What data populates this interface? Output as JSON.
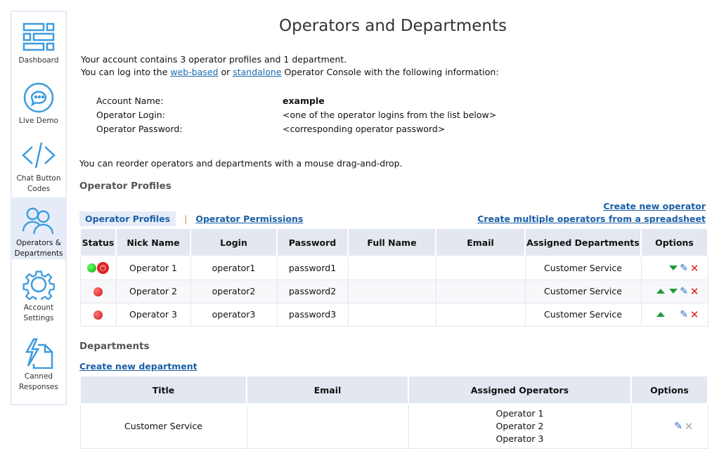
{
  "sidebar": {
    "items": [
      {
        "label": "Dashboard",
        "icon": "dashboard-icon"
      },
      {
        "label": "Live Demo",
        "icon": "chat-bubble-icon"
      },
      {
        "label": "Chat Button Codes",
        "icon": "code-icon"
      },
      {
        "label": "Operators & Departments",
        "icon": "users-icon",
        "active": true
      },
      {
        "label": "Account Settings",
        "icon": "gear-icon"
      },
      {
        "label": "Canned Responses",
        "icon": "lightning-document-icon"
      }
    ]
  },
  "page": {
    "title": "Operators and Departments",
    "intro1": "Your account contains 3 operator profiles and 1 department.",
    "intro2a": "You can log into the ",
    "link_web": "web-based",
    "intro2b": " or ",
    "link_standalone": "standalone",
    "intro2c": " Operator Console with the following information:",
    "info": [
      {
        "label": "Account Name:",
        "value": "example"
      },
      {
        "label": "Operator Login:",
        "value": "<one of the operator logins from the list below>"
      },
      {
        "label": "Operator Password:",
        "value": "<corresponding operator password>"
      }
    ],
    "reorder": "You can reorder operators and departments with a mouse drag-and-drop."
  },
  "operators": {
    "heading": "Operator Profiles",
    "create": "Create new operator",
    "create_multi": "Create multiple operators from a spreadsheet",
    "tabs": [
      {
        "label": "Operator Profiles",
        "active": true
      },
      {
        "label": "Operator Permissions"
      }
    ],
    "separator": "|",
    "columns": [
      "Status",
      "Nick Name",
      "Login",
      "Password",
      "Full Name",
      "Email",
      "Assigned Departments",
      "Options"
    ],
    "rows": [
      {
        "status": "online",
        "nick": "Operator 1",
        "login": "operator1",
        "password": "password1",
        "full_name": "",
        "email": "",
        "departments": "Customer Service"
      },
      {
        "status": "offline",
        "nick": "Operator 2",
        "login": "operator2",
        "password": "password2",
        "full_name": "",
        "email": "",
        "departments": "Customer Service"
      },
      {
        "status": "offline",
        "nick": "Operator 3",
        "login": "operator3",
        "password": "password3",
        "full_name": "",
        "email": "",
        "departments": "Customer Service"
      }
    ]
  },
  "departments": {
    "heading": "Departments",
    "create": "Create new department",
    "columns": [
      "Title",
      "Email",
      "Assigned Operators",
      "Options"
    ],
    "rows": [
      {
        "title": "Customer Service",
        "email": "",
        "operators": [
          "Operator 1",
          "Operator 2",
          "Operator 3"
        ]
      }
    ]
  },
  "colors": {
    "accent": "#1b6bb0",
    "icon": "#3b9be0",
    "header_bg": "#e3e7ef",
    "active_bg": "#e6ecf7"
  }
}
